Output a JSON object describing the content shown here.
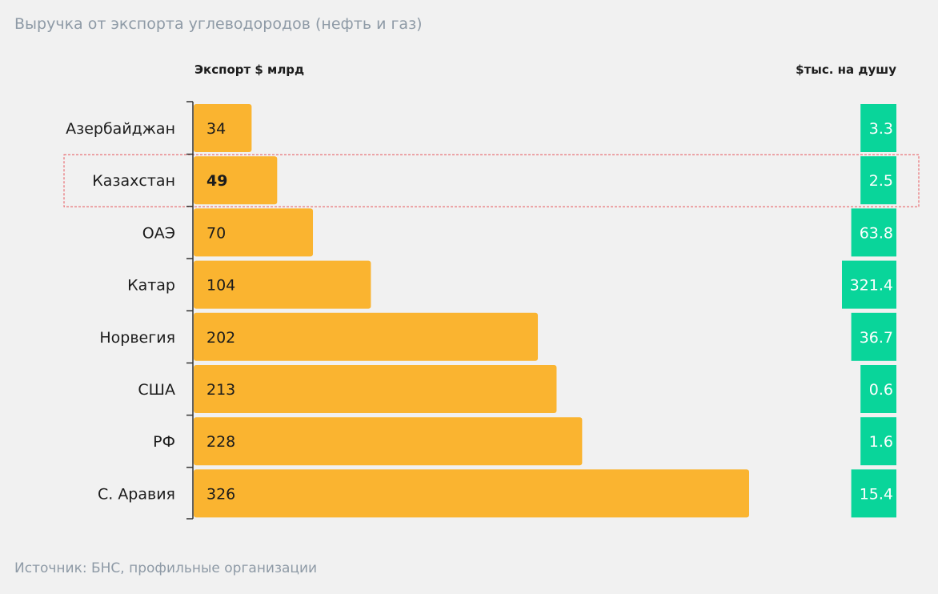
{
  "title": "Выручка от экспорта углеводородов (нефть и газ)",
  "source": "Источник: БНС, профильные организации",
  "colors": {
    "export_bar": "#fab430",
    "per_capita_bar": "#09d59a",
    "highlight_border": "#e8555b",
    "axis": "#333333",
    "background": "#f1f1f1"
  },
  "chart_data": {
    "type": "bar",
    "orientation": "horizontal",
    "categories": [
      "Азербайджан",
      "Казахстан",
      "ОАЭ",
      "Катар",
      "Норвегия",
      "США",
      "РФ",
      "С. Аравия"
    ],
    "highlighted_category": "Казахстан",
    "series": [
      {
        "name": "Экспорт $ млрд",
        "values": [
          34,
          49,
          70,
          104,
          202,
          213,
          228,
          326
        ],
        "labels": [
          "34",
          "49",
          "70",
          "104",
          "202",
          "213",
          "228",
          "326"
        ]
      },
      {
        "name": "$тыс. на душу",
        "values": [
          3.3,
          2.5,
          63.8,
          321.4,
          36.7,
          0.6,
          1.6,
          15.4
        ],
        "labels": [
          "3.3",
          "2.5",
          "63.8",
          "321.4",
          "36.7",
          "0.6",
          "1.6",
          "15.4"
        ]
      }
    ],
    "xlim": [
      0,
      326
    ],
    "grid": false,
    "legend": "none"
  }
}
